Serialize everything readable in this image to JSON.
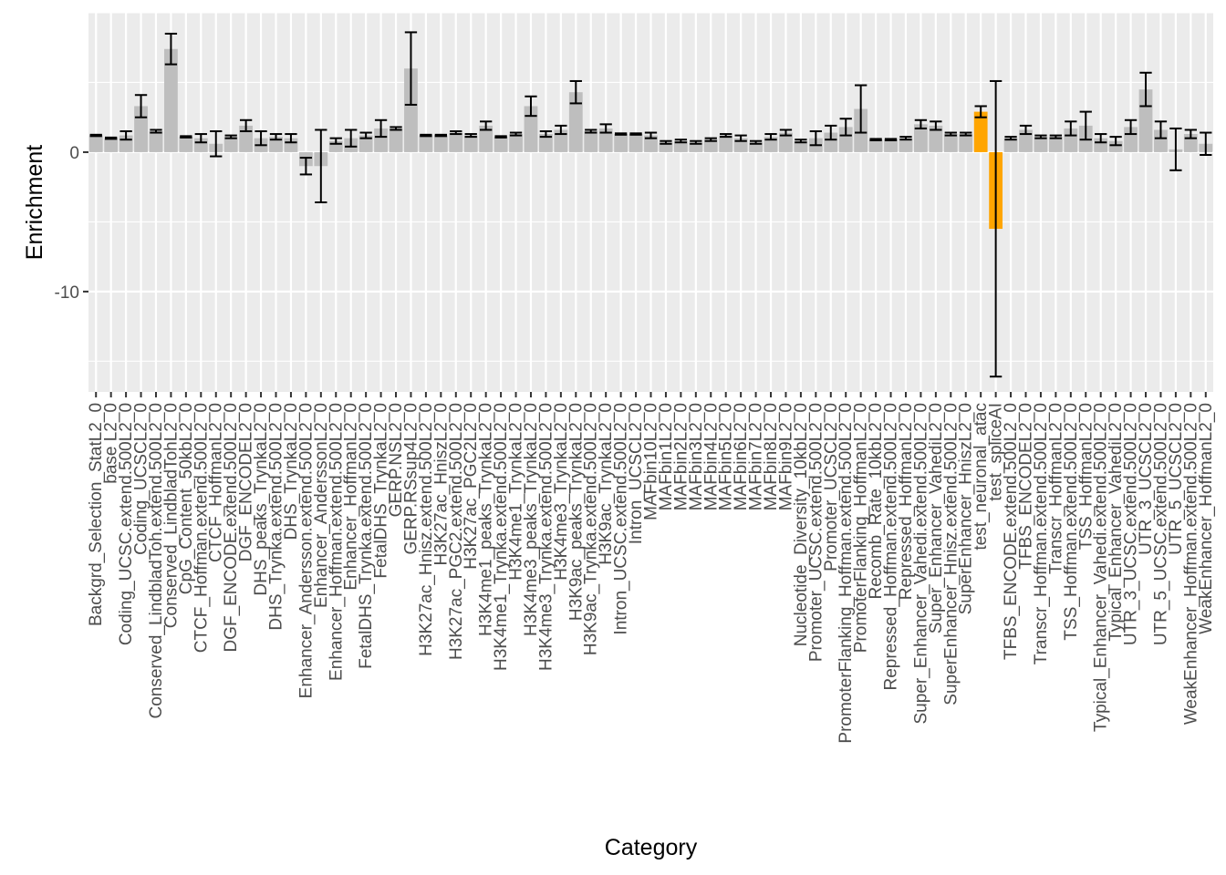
{
  "chart_data": {
    "type": "bar",
    "xlabel": "Category",
    "ylabel": "Enrichment",
    "ylim": [
      -17.2,
      10.0
    ],
    "yticks": [
      -10,
      0
    ],
    "yticklabels": [
      "-10",
      "0"
    ],
    "grid": true,
    "legend": "none",
    "error_bars": true,
    "colors": {
      "default": "#bebebe",
      "highlight": "#ffa500",
      "panel": "#ebebeb",
      "grid": "#ffffff",
      "error_bar": "#000000"
    },
    "categories": [
      "Backgrd_Selection_StatL2_0",
      "base L2_0",
      "Coding_UCSC.extend.500L2_0",
      "Coding_UCSCL2_0",
      "Conserved_LindbladToh.extend.500L2_0",
      "Conserved_LindbladTohL2_0",
      "CpG_Content_50kbL2_0",
      "CTCF_Hoffman.extend.500L2_0",
      "CTCF_HoffmanL2_0",
      "DGF_ENCODE.extend.500L2_0",
      "DGF_ENCODEL2_0",
      "DHS_peaks_TrynkaL2_0",
      "DHS_Trynka.extend.500L2_0",
      "DHS_TrynkaL2_0",
      "Enhancer_Andersson.extend.500L2_0",
      "Enhancer_AnderssonL2_0",
      "Enhancer_Hoffman.extend.500L2_0",
      "Enhancer_HoffmanL2_0",
      "FetalDHS_Trynka.extend.500L2_0",
      "FetalDHS_TrynkaL2_0",
      "GERP.NSL2_0",
      "GERP.RSsup4L2_0",
      "H3K27ac_Hnisz.extend.500L2_0",
      "H3K27ac_HniszL2_0",
      "H3K27ac_PGC2.extend.500L2_0",
      "H3K27ac_PGC2L2_0",
      "H3K4me1_peaks_TrynkaL2_0",
      "H3K4me1_Trynka.extend.500L2_0",
      "H3K4me1_TrynkaL2_0",
      "H3K4me3_peaks_TrynkaL2_0",
      "H3K4me3_Trynka.extend.500L2_0",
      "H3K4me3_TrynkaL2_0",
      "H3K9ac_peaks_TrynkaL2_0",
      "H3K9ac_Trynka.extend.500L2_0",
      "H3K9ac_TrynkaL2_0",
      "Intron_UCSC.extend.500L2_0",
      "Intron_UCSCL2_0",
      "MAFbin10L2_0",
      "MAFbin1L2_0",
      "MAFbin2L2_0",
      "MAFbin3L2_0",
      "MAFbin4L2_0",
      "MAFbin5L2_0",
      "MAFbin6L2_0",
      "MAFbin7L2_0",
      "MAFbin8L2_0",
      "MAFbin9L2_0",
      "Nucleotide_Diversity_10kbL2_0",
      "Promoter_UCSC.extend.500L2_0",
      "Promoter_UCSCL2_0",
      "PromoterFlanking_Hoffman.extend.500L2_0",
      "PromoterFlanking_HoffmanL2_0",
      "Recomb_Rate_10kbL2_0",
      "Repressed_Hoffman.extend.500L2_0",
      "Repressed_HoffmanL2_0",
      "Super_Enhancer_Vahedi.extend.500L2_0",
      "Super_Enhancer_VahediL2_0",
      "SuperEnhancer_Hnisz.extend.500L2_0",
      "SuperEnhancer_HniszL2_0",
      "test_neuronal_atac",
      "test_spliceAI",
      "TFBS_ENCODE.extend.500L2_0",
      "TFBS_ENCODEL2_0",
      "Transcr_Hoffman.extend.500L2_0",
      "Transcr_HoffmanL2_0",
      "TSS_Hoffman.extend.500L2_0",
      "TSS_HoffmanL2_0",
      "Typical_Enhancer_Vahedi.extend.500L2_0",
      "Typical_Enhancer_VahediL2_0",
      "UTR_3_UCSC.extend.500L2_0",
      "UTR_3_UCSCL2_0",
      "UTR_5_UCSC.extend.500L2_0",
      "UTR_5_UCSCL2_0",
      "WeakEnhancer_Hoffman.extend.500L2_0",
      "WeakEnhancer_HoffmanL2_0"
    ],
    "values": [
      1.2,
      1.0,
      1.2,
      3.3,
      1.5,
      7.4,
      1.1,
      1.0,
      0.6,
      1.1,
      1.9,
      1.0,
      1.1,
      1.0,
      -1.0,
      -1.0,
      0.8,
      1.0,
      1.2,
      1.7,
      1.7,
      6.0,
      1.2,
      1.2,
      1.4,
      1.2,
      1.9,
      1.1,
      1.3,
      3.3,
      1.3,
      1.6,
      4.3,
      1.5,
      1.7,
      1.3,
      1.3,
      1.2,
      0.7,
      0.8,
      0.7,
      0.9,
      1.2,
      1.0,
      0.7,
      1.1,
      1.4,
      0.8,
      1.0,
      1.4,
      1.8,
      3.1,
      0.9,
      0.9,
      1.0,
      2.0,
      1.9,
      1.3,
      1.3,
      2.9,
      -5.5,
      1.0,
      1.6,
      1.1,
      1.1,
      1.7,
      1.9,
      1.0,
      0.8,
      1.8,
      4.5,
      1.6,
      0.2,
      1.3,
      0.6
    ],
    "errors": [
      0.05,
      0.05,
      0.3,
      0.8,
      0.1,
      1.1,
      0.05,
      0.3,
      0.9,
      0.1,
      0.4,
      0.5,
      0.2,
      0.3,
      0.6,
      2.6,
      0.2,
      0.6,
      0.2,
      0.6,
      0.1,
      2.6,
      0.05,
      0.05,
      0.1,
      0.1,
      0.3,
      0.05,
      0.1,
      0.7,
      0.2,
      0.3,
      0.8,
      0.1,
      0.3,
      0.05,
      0.05,
      0.2,
      0.1,
      0.1,
      0.1,
      0.1,
      0.1,
      0.2,
      0.1,
      0.2,
      0.2,
      0.1,
      0.5,
      0.5,
      0.6,
      1.7,
      0.05,
      0.05,
      0.1,
      0.3,
      0.3,
      0.1,
      0.1,
      0.4,
      10.6,
      0.1,
      0.3,
      0.1,
      0.1,
      0.5,
      1.0,
      0.3,
      0.3,
      0.5,
      1.2,
      0.6,
      1.5,
      0.3,
      0.8
    ],
    "highlight_indices": [
      59,
      60
    ]
  }
}
